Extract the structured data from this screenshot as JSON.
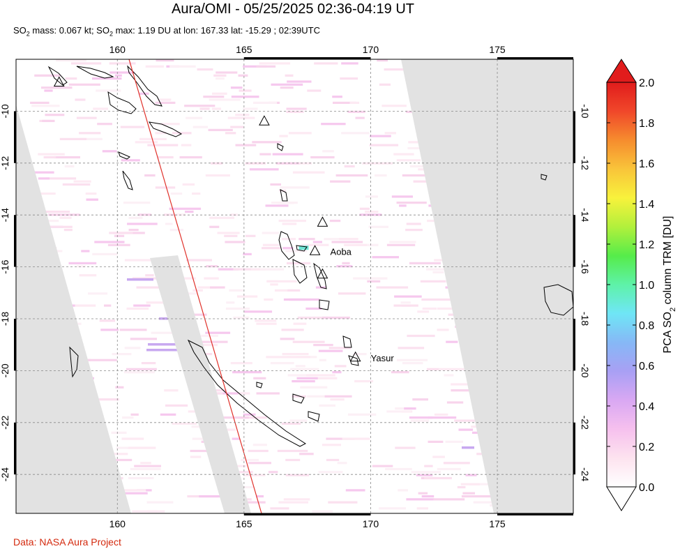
{
  "title": "Aura/OMI - 05/25/2025 02:36-04:19 UT",
  "subtitle": {
    "p1": "SO",
    "s1": "2",
    "p2": " mass: 0.067 kt; SO",
    "s2": "2",
    "p3": " max: 1.19 DU at lon: 167.33 lat: -15.29 ; 02:39UTC"
  },
  "credit": "Data: NASA Aura Project",
  "chart_data": {
    "type": "heatmap",
    "xlim": [
      156,
      178
    ],
    "ylim": [
      -25.5,
      -8
    ],
    "x_ticks": [
      160,
      165,
      170,
      175
    ],
    "x_tick_labels": [
      "160",
      "165",
      "170",
      "175"
    ],
    "y_ticks": [
      -10,
      -12,
      -14,
      -16,
      -18,
      -20,
      -22,
      -24
    ],
    "y_tick_labels": [
      "-10",
      "-12",
      "-14",
      "-16",
      "-18",
      "-20",
      "-22",
      "-24"
    ],
    "grid": true,
    "volcanoes": [
      {
        "name": "",
        "lon": 157.7,
        "lat": -8.9
      },
      {
        "name": "",
        "lon": 165.8,
        "lat": -10.4
      },
      {
        "name": "",
        "lon": 168.1,
        "lat": -14.3
      },
      {
        "name": "Aoba",
        "lon": 167.8,
        "lat": -15.4
      },
      {
        "name": "",
        "lon": 168.1,
        "lat": -16.3
      },
      {
        "name": "Yasur",
        "lon": 169.4,
        "lat": -19.5
      }
    ],
    "so2_max": {
      "value": 1.19,
      "lon": 167.33,
      "lat": -15.29
    },
    "colorbar": {
      "label_parts": [
        "PCA SO",
        "2",
        " column TRM [DU]"
      ],
      "range": [
        0.0,
        2.0
      ],
      "ticks": [
        "0.0",
        "0.2",
        "0.4",
        "0.6",
        "0.8",
        "1.0",
        "1.2",
        "1.4",
        "1.6",
        "1.8",
        "2.0"
      ],
      "colors": [
        "#ffffff",
        "#fde3ef",
        "#f6c0ee",
        "#d9a8f3",
        "#a8a0f4",
        "#86b8f6",
        "#6fe6f6",
        "#5ef2a8",
        "#56ec4a",
        "#b2f03c",
        "#f8f23c",
        "#f9c43a",
        "#f68c2e",
        "#f0472a",
        "#e11c1c"
      ]
    }
  }
}
